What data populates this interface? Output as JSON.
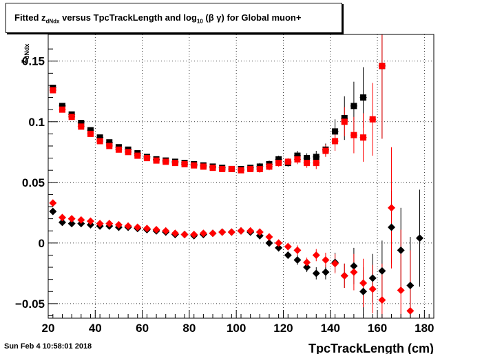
{
  "title": {
    "prefix": "Fitted  z",
    "sub1": "dNdx",
    "middle": "  versus  TpcTrackLength and log",
    "sub2": "10",
    "suffix": " (β γ) for Global muon+"
  },
  "timestamp": "Sun Feb  4 10:58:01 2018",
  "chart_data": {
    "type": "scatter",
    "title": "Fitted z_dNdx versus TpcTrackLength and log10 (β γ) for Global muon+",
    "xlabel": "TpcTrackLength (cm)",
    "ylabel": "z_dNdx",
    "xlim": [
      20,
      184
    ],
    "ylim": [
      -0.062,
      0.172
    ],
    "grid": true,
    "x_ticks": [
      20,
      40,
      60,
      80,
      100,
      120,
      140,
      160,
      180
    ],
    "x_tick_labels": [
      "20",
      "40",
      "60",
      "80",
      "100",
      "120",
      "140",
      "160",
      "180"
    ],
    "y_ticks": [
      -0.05,
      0,
      0.05,
      0.1,
      0.15
    ],
    "y_tick_labels": [
      "−0.05",
      "0",
      "0.05",
      "0.1",
      "0.15"
    ],
    "series": [
      {
        "marker": "square",
        "color": "#000000",
        "points": [
          [
            22,
            0.128,
            0.002
          ],
          [
            26,
            0.113,
            0.002
          ],
          [
            30,
            0.106,
            0.002
          ],
          [
            34,
            0.099,
            0.002
          ],
          [
            38,
            0.093,
            0.002
          ],
          [
            42,
            0.087,
            0.002
          ],
          [
            46,
            0.083,
            0.002
          ],
          [
            50,
            0.079,
            0.002
          ],
          [
            54,
            0.077,
            0.002
          ],
          [
            58,
            0.074,
            0.002
          ],
          [
            62,
            0.071,
            0.002
          ],
          [
            66,
            0.069,
            0.002
          ],
          [
            70,
            0.068,
            0.002
          ],
          [
            74,
            0.067,
            0.002
          ],
          [
            78,
            0.066,
            0.002
          ],
          [
            82,
            0.065,
            0.002
          ],
          [
            86,
            0.064,
            0.002
          ],
          [
            90,
            0.063,
            0.002
          ],
          [
            94,
            0.062,
            0.002
          ],
          [
            98,
            0.061,
            0.002
          ],
          [
            102,
            0.061,
            0.002
          ],
          [
            106,
            0.062,
            0.002
          ],
          [
            110,
            0.063,
            0.003
          ],
          [
            114,
            0.065,
            0.003
          ],
          [
            118,
            0.069,
            0.003
          ],
          [
            122,
            0.066,
            0.003
          ],
          [
            126,
            0.072,
            0.004
          ],
          [
            130,
            0.07,
            0.004
          ],
          [
            134,
            0.071,
            0.005
          ],
          [
            138,
            0.077,
            0.005
          ],
          [
            142,
            0.092,
            0.01
          ],
          [
            146,
            0.103,
            0.018
          ],
          [
            150,
            0.113,
            0.02
          ],
          [
            154,
            0.12,
            0.025
          ],
          [
            162,
            0.146,
            0.06
          ]
        ]
      },
      {
        "marker": "square",
        "color": "#ff0000",
        "points": [
          [
            22,
            0.126,
            0.002
          ],
          [
            26,
            0.11,
            0.002
          ],
          [
            30,
            0.104,
            0.002
          ],
          [
            34,
            0.096,
            0.002
          ],
          [
            38,
            0.09,
            0.002
          ],
          [
            42,
            0.084,
            0.002
          ],
          [
            46,
            0.08,
            0.002
          ],
          [
            50,
            0.077,
            0.002
          ],
          [
            54,
            0.075,
            0.002
          ],
          [
            58,
            0.072,
            0.002
          ],
          [
            62,
            0.07,
            0.002
          ],
          [
            66,
            0.068,
            0.002
          ],
          [
            70,
            0.067,
            0.002
          ],
          [
            74,
            0.066,
            0.002
          ],
          [
            78,
            0.065,
            0.002
          ],
          [
            82,
            0.064,
            0.002
          ],
          [
            86,
            0.063,
            0.002
          ],
          [
            90,
            0.062,
            0.002
          ],
          [
            94,
            0.061,
            0.002
          ],
          [
            98,
            0.061,
            0.002
          ],
          [
            102,
            0.06,
            0.002
          ],
          [
            106,
            0.061,
            0.002
          ],
          [
            110,
            0.061,
            0.003
          ],
          [
            114,
            0.063,
            0.003
          ],
          [
            118,
            0.066,
            0.003
          ],
          [
            122,
            0.067,
            0.003
          ],
          [
            126,
            0.069,
            0.004
          ],
          [
            130,
            0.066,
            0.004
          ],
          [
            134,
            0.066,
            0.005
          ],
          [
            138,
            0.076,
            0.005
          ],
          [
            142,
            0.084,
            0.008
          ],
          [
            146,
            0.1,
            0.012
          ],
          [
            150,
            0.089,
            0.015
          ],
          [
            154,
            0.087,
            0.02
          ],
          [
            158,
            0.102,
            0.03
          ],
          [
            162,
            0.146,
            0.06
          ]
        ]
      },
      {
        "marker": "diamond",
        "color": "#000000",
        "points": [
          [
            22,
            0.026,
            0.002
          ],
          [
            26,
            0.017,
            0.002
          ],
          [
            30,
            0.016,
            0.002
          ],
          [
            34,
            0.016,
            0.002
          ],
          [
            38,
            0.015,
            0.002
          ],
          [
            42,
            0.014,
            0.002
          ],
          [
            46,
            0.014,
            0.002
          ],
          [
            50,
            0.013,
            0.002
          ],
          [
            54,
            0.013,
            0.002
          ],
          [
            58,
            0.012,
            0.002
          ],
          [
            62,
            0.011,
            0.002
          ],
          [
            66,
            0.01,
            0.002
          ],
          [
            70,
            0.009,
            0.002
          ],
          [
            74,
            0.007,
            0.002
          ],
          [
            78,
            0.007,
            0.002
          ],
          [
            82,
            0.006,
            0.002
          ],
          [
            86,
            0.007,
            0.002
          ],
          [
            90,
            0.008,
            0.002
          ],
          [
            94,
            0.009,
            0.002
          ],
          [
            98,
            0.009,
            0.002
          ],
          [
            102,
            0.01,
            0.002
          ],
          [
            106,
            0.009,
            0.002
          ],
          [
            110,
            0.006,
            0.003
          ],
          [
            114,
            0.0,
            0.003
          ],
          [
            118,
            -0.004,
            0.003
          ],
          [
            122,
            -0.01,
            0.003
          ],
          [
            126,
            -0.014,
            0.004
          ],
          [
            130,
            -0.02,
            0.004
          ],
          [
            134,
            -0.025,
            0.005
          ],
          [
            138,
            -0.024,
            0.006
          ],
          [
            142,
            -0.016,
            0.008
          ],
          [
            146,
            -0.027,
            0.01
          ],
          [
            150,
            -0.019,
            0.015
          ],
          [
            154,
            -0.04,
            0.02
          ],
          [
            158,
            -0.029,
            0.02
          ],
          [
            162,
            -0.023,
            0.025
          ],
          [
            166,
            0.013,
            0.03
          ],
          [
            170,
            -0.006,
            0.035
          ],
          [
            174,
            -0.035,
            0.04
          ],
          [
            178,
            0.004,
            0.04
          ]
        ]
      },
      {
        "marker": "diamond",
        "color": "#ff0000",
        "points": [
          [
            22,
            0.033,
            0.002
          ],
          [
            26,
            0.021,
            0.002
          ],
          [
            30,
            0.02,
            0.002
          ],
          [
            34,
            0.019,
            0.002
          ],
          [
            38,
            0.018,
            0.002
          ],
          [
            42,
            0.016,
            0.002
          ],
          [
            46,
            0.016,
            0.002
          ],
          [
            50,
            0.015,
            0.002
          ],
          [
            54,
            0.014,
            0.002
          ],
          [
            58,
            0.013,
            0.002
          ],
          [
            62,
            0.012,
            0.002
          ],
          [
            66,
            0.011,
            0.002
          ],
          [
            70,
            0.01,
            0.002
          ],
          [
            74,
            0.008,
            0.002
          ],
          [
            78,
            0.007,
            0.002
          ],
          [
            82,
            0.007,
            0.002
          ],
          [
            86,
            0.008,
            0.002
          ],
          [
            90,
            0.008,
            0.002
          ],
          [
            94,
            0.009,
            0.002
          ],
          [
            98,
            0.009,
            0.002
          ],
          [
            102,
            0.01,
            0.002
          ],
          [
            106,
            0.01,
            0.002
          ],
          [
            110,
            0.009,
            0.003
          ],
          [
            114,
            0.005,
            0.003
          ],
          [
            118,
            0.0,
            0.003
          ],
          [
            122,
            -0.003,
            0.003
          ],
          [
            126,
            -0.006,
            0.004
          ],
          [
            130,
            -0.016,
            0.004
          ],
          [
            134,
            -0.01,
            0.005
          ],
          [
            138,
            -0.014,
            0.006
          ],
          [
            142,
            -0.017,
            0.008
          ],
          [
            146,
            -0.027,
            0.01
          ],
          [
            150,
            -0.024,
            0.015
          ],
          [
            154,
            -0.033,
            0.02
          ],
          [
            158,
            -0.038,
            0.02
          ],
          [
            162,
            -0.047,
            0.03
          ],
          [
            166,
            0.029,
            0.05
          ],
          [
            170,
            -0.039,
            0.05
          ],
          [
            174,
            -0.056,
            0.05
          ]
        ]
      }
    ]
  }
}
